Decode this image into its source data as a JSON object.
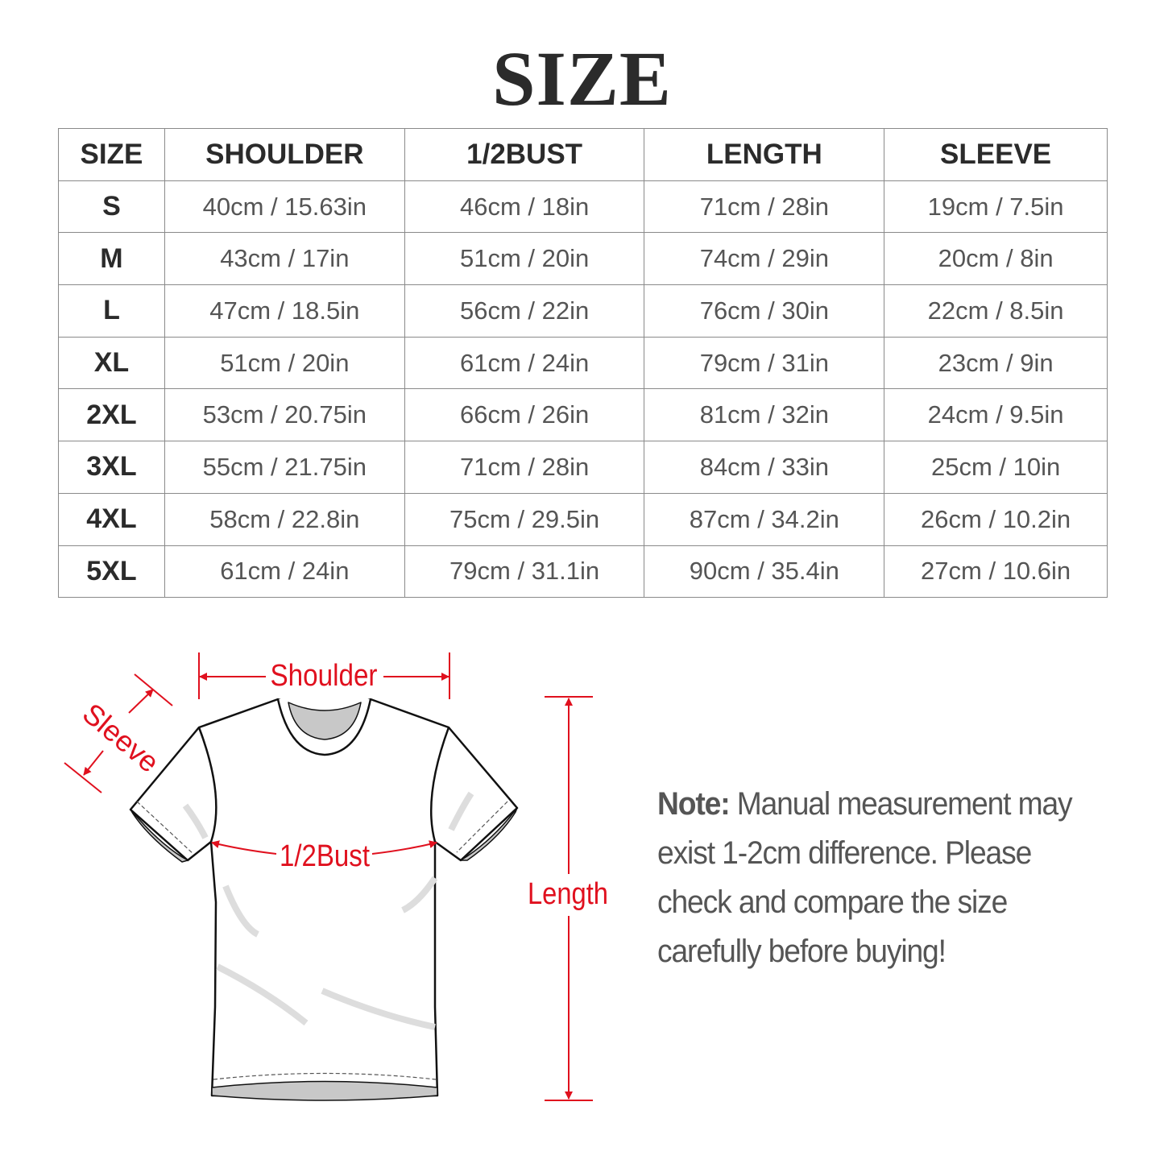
{
  "title": "SIZE",
  "table": {
    "headers": [
      "SIZE",
      "SHOULDER",
      "1/2BUST",
      "LENGTH",
      "SLEEVE"
    ],
    "rows": [
      [
        "S",
        "40cm / 15.63in",
        "46cm / 18in",
        "71cm / 28in",
        "19cm / 7.5in"
      ],
      [
        "M",
        "43cm / 17in",
        "51cm / 20in",
        "74cm / 29in",
        "20cm / 8in"
      ],
      [
        "L",
        "47cm / 18.5in",
        "56cm / 22in",
        "76cm / 30in",
        "22cm / 8.5in"
      ],
      [
        "XL",
        "51cm / 20in",
        "61cm / 24in",
        "79cm / 31in",
        "23cm / 9in"
      ],
      [
        "2XL",
        "53cm / 20.75in",
        "66cm / 26in",
        "81cm / 32in",
        "24cm / 9.5in"
      ],
      [
        "3XL",
        "55cm / 21.75in",
        "71cm / 28in",
        "84cm / 33in",
        "25cm / 10in"
      ],
      [
        "4XL",
        "58cm / 22.8in",
        "75cm / 29.5in",
        "87cm / 34.2in",
        "26cm / 10.2in"
      ],
      [
        "5XL",
        "61cm / 24in",
        "79cm / 31.1in",
        "90cm / 35.4in",
        "27cm / 10.6in"
      ]
    ]
  },
  "diagram": {
    "shoulder": "Shoulder",
    "sleeve": "Sleeve",
    "bust": "1/2Bust",
    "length": "Length",
    "accent_color": "#e0101e"
  },
  "note": {
    "label": "Note:",
    "text": " Manual measurement may exist 1-2cm difference. Please check and compare the size carefully before buying!"
  }
}
